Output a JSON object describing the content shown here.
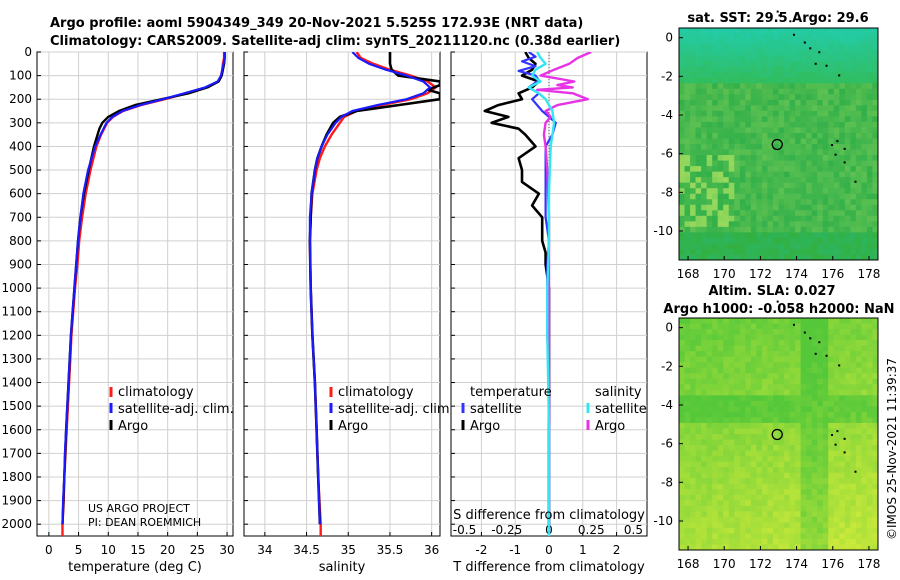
{
  "title_line1": "Argo profile: aoml 5904349_349 20-Nov-2021 5.525S 172.93E (NRT data)",
  "title_line2": "Climatology: CARS2009. Satellite-adj clim: synTS_20211120.nc (0.38d earlier)",
  "credit": "©IMOS 25-Nov-2021 11:39:37",
  "project_line1": "US ARGO PROJECT",
  "project_line2": "PI: DEAN ROEMMICH",
  "colors": {
    "climatology": "#ff1a1a",
    "satellite": "#1a1aff",
    "argo": "#000000",
    "t_sat": "#3333ff",
    "s_sat": "#33e6f2",
    "s_argo": "#e633e6"
  },
  "chart_data": [
    {
      "type": "line",
      "id": "temperature",
      "xlabel": "temperature (deg C)",
      "xlim": [
        -2,
        31
      ],
      "ylim": [
        2050,
        0
      ],
      "xticks": [
        0,
        5,
        10,
        15,
        20,
        25,
        30
      ],
      "yticks": [
        0,
        100,
        200,
        300,
        400,
        500,
        600,
        700,
        800,
        900,
        1000,
        1100,
        1200,
        1300,
        1400,
        1500,
        1600,
        1700,
        1800,
        1900,
        2000
      ],
      "legend": [
        "climatology",
        "satellite-adj. clim.",
        "Argo"
      ],
      "series": [
        {
          "name": "climatology",
          "depth": [
            0,
            25,
            50,
            75,
            100,
            125,
            150,
            175,
            200,
            225,
            250,
            275,
            300,
            350,
            400,
            500,
            600,
            700,
            800,
            900,
            1000,
            1100,
            1200,
            1300,
            1400,
            1500,
            1600,
            1700,
            1800,
            1900,
            2000,
            2050
          ],
          "values": [
            29.5,
            29.5,
            29.3,
            29.2,
            29.0,
            28.5,
            26.5,
            23,
            19.5,
            15.5,
            12.5,
            10.8,
            9.8,
            8.8,
            8.0,
            7.0,
            6.2,
            5.6,
            5.1,
            4.8,
            4.4,
            4.1,
            3.8,
            3.6,
            3.4,
            3.2,
            3.0,
            2.8,
            2.6,
            2.5,
            2.3,
            2.3
          ]
        },
        {
          "name": "satellite-adj. clim.",
          "depth": [
            0,
            25,
            50,
            75,
            100,
            125,
            150,
            175,
            200,
            225,
            250,
            275,
            300,
            350,
            400,
            500,
            600,
            700,
            800,
            900,
            1000,
            1100,
            1200,
            1300,
            1400,
            1500,
            1600,
            1700,
            1800,
            1900,
            2000
          ],
          "values": [
            29.6,
            29.6,
            29.4,
            29.2,
            29.0,
            28.4,
            26.3,
            22.8,
            19.2,
            15.4,
            12.4,
            10.7,
            9.7,
            8.7,
            7.8,
            6.6,
            5.8,
            5.3,
            4.9,
            4.6,
            4.3,
            4.0,
            3.7,
            3.5,
            3.3,
            3.1,
            2.9,
            2.7,
            2.6,
            2.4,
            2.3
          ]
        },
        {
          "name": "Argo",
          "depth": [
            0,
            25,
            50,
            75,
            100,
            125,
            150,
            175,
            200,
            225,
            250,
            275,
            300,
            325,
            350,
            400,
            500,
            600,
            700,
            800,
            900,
            1000,
            1200,
            1400,
            1600,
            1800,
            2000
          ],
          "values": [
            29.6,
            29.6,
            29.5,
            29.3,
            29.1,
            28.6,
            26.7,
            23.5,
            19.0,
            14.5,
            11.8,
            10.0,
            9.0,
            8.5,
            8.2,
            7.6,
            6.7,
            5.9,
            5.3,
            4.9,
            4.6,
            4.3,
            3.7,
            3.3,
            2.9,
            2.6,
            2.3
          ]
        }
      ]
    },
    {
      "type": "line",
      "id": "salinity",
      "xlabel": "salinity",
      "xlim": [
        33.75,
        36.1
      ],
      "ylim": [
        2050,
        0
      ],
      "xticks": [
        34,
        34.5,
        35,
        35.5,
        36
      ],
      "xticklabels": [
        "34",
        "34.5",
        "35",
        "35.5",
        "36"
      ],
      "legend": [
        "climatology",
        "satellite-adj. clim.",
        "Argo"
      ],
      "series": [
        {
          "name": "climatology",
          "depth": [
            0,
            25,
            50,
            75,
            100,
            125,
            150,
            175,
            200,
            225,
            250,
            275,
            300,
            350,
            400,
            450,
            500,
            600,
            700,
            800,
            1000,
            1200,
            1400,
            1600,
            1800,
            2000,
            2050
          ],
          "values": [
            35.1,
            35.15,
            35.3,
            35.5,
            35.75,
            35.95,
            36.05,
            35.95,
            35.75,
            35.4,
            35.1,
            34.95,
            34.9,
            34.8,
            34.72,
            34.66,
            34.62,
            34.57,
            34.55,
            34.54,
            34.55,
            34.57,
            34.6,
            34.62,
            34.64,
            34.67,
            34.67
          ]
        },
        {
          "name": "satellite-adj. clim.",
          "depth": [
            0,
            25,
            50,
            75,
            100,
            125,
            150,
            175,
            200,
            225,
            250,
            275,
            300,
            350,
            400,
            450,
            500,
            600,
            700,
            800,
            1000,
            1200,
            1400,
            1600,
            1800,
            2000
          ],
          "values": [
            35.05,
            35.12,
            35.25,
            35.45,
            35.7,
            35.9,
            35.98,
            35.9,
            35.7,
            35.35,
            35.05,
            34.92,
            34.85,
            34.75,
            34.68,
            34.63,
            34.6,
            34.56,
            34.54,
            34.54,
            34.55,
            34.57,
            34.6,
            34.62,
            34.64,
            34.66
          ]
        },
        {
          "name": "Argo",
          "depth": [
            0,
            25,
            50,
            75,
            100,
            125,
            140,
            160,
            175,
            200,
            225,
            250,
            275,
            300,
            350,
            400,
            450,
            500,
            600,
            700,
            800,
            1000,
            1200,
            1400,
            1600,
            1800,
            2000
          ],
          "values": [
            35.5,
            35.5,
            35.5,
            35.52,
            35.6,
            36.1,
            36.1,
            35.95,
            36.1,
            36.1,
            35.6,
            35.1,
            34.9,
            34.82,
            34.74,
            34.68,
            34.63,
            34.6,
            34.56,
            34.55,
            34.54,
            34.55,
            34.57,
            34.6,
            34.62,
            34.64,
            34.66
          ]
        }
      ]
    },
    {
      "type": "line",
      "id": "differences",
      "xlabel": "T difference from climatology",
      "xlabel_top": "S difference from climatology",
      "xlim": [
        -2.9,
        2.9
      ],
      "ylim": [
        2050,
        0
      ],
      "xticks": [
        -2,
        -1,
        0,
        1,
        2
      ],
      "s_ticks": [
        -0.5,
        -0.25,
        0,
        0.25,
        0.5
      ],
      "s_ticklabels": [
        "-0.5",
        "-0.25",
        "0",
        "0.25",
        "0.5"
      ],
      "legend_temperature_title": "temperature",
      "legend_salinity_title": "salinity",
      "legend": [
        "satellite",
        "Argo",
        "satellite",
        "Argo"
      ],
      "series": [
        {
          "name": "T satellite",
          "depth": [
            0,
            20,
            40,
            60,
            80,
            100,
            120,
            150,
            175,
            200,
            250,
            300,
            350,
            400,
            500,
            600,
            700,
            800,
            900,
            1000,
            1200,
            1400,
            1600,
            1800,
            2000,
            2050
          ],
          "values": [
            -0.6,
            -0.4,
            -0.8,
            -0.4,
            -0.9,
            -0.4,
            -0.3,
            -0.6,
            -0.3,
            -0.5,
            -0.2,
            0.2,
            0.1,
            -0.1,
            -0.1,
            -0.1,
            -0.1,
            0.0,
            -0.05,
            -0.05,
            -0.05,
            0,
            0,
            0,
            0,
            0
          ]
        },
        {
          "name": "T Argo",
          "depth": [
            0,
            25,
            50,
            75,
            100,
            125,
            150,
            175,
            200,
            225,
            250,
            275,
            300,
            325,
            350,
            400,
            450,
            500,
            550,
            600,
            650,
            700,
            750,
            800,
            850,
            900,
            950,
            1000,
            1100,
            1200,
            1400,
            1600,
            1800,
            2000
          ],
          "values": [
            -0.7,
            -0.6,
            -0.4,
            -0.5,
            -0.8,
            -0.3,
            -0.5,
            -0.9,
            -0.8,
            -1.5,
            -1.9,
            -1.2,
            -1.7,
            -0.9,
            -0.7,
            -0.4,
            -0.9,
            -0.8,
            -0.8,
            -0.3,
            -0.5,
            -0.2,
            -0.2,
            -0.2,
            -0.1,
            -0.1,
            -0.05,
            0,
            0,
            0,
            0,
            0,
            0,
            0
          ]
        },
        {
          "name": "S satellite",
          "depth": [
            0,
            25,
            50,
            75,
            100,
            125,
            150,
            175,
            200,
            250,
            300,
            350,
            400,
            500,
            600,
            800,
            1000,
            1200,
            1400,
            1600,
            1800,
            2000,
            2050
          ],
          "values": [
            -0.07,
            -0.05,
            -0.02,
            -0.08,
            -0.1,
            -0.05,
            -0.12,
            -0.06,
            -0.02,
            0.02,
            0.03,
            0.02,
            0.01,
            0.005,
            0,
            0,
            -0.01,
            -0.01,
            -0.005,
            0,
            0,
            0,
            0
          ]
        },
        {
          "name": "S Argo",
          "depth": [
            0,
            25,
            50,
            75,
            100,
            125,
            140,
            150,
            160,
            175,
            200,
            225,
            250,
            275,
            300,
            350,
            400,
            500,
            600,
            700,
            800,
            1000,
            1200,
            1400,
            1600,
            1800,
            2000
          ],
          "values": [
            0.25,
            0.17,
            0.12,
            0.03,
            -0.05,
            0.15,
            0.05,
            0.14,
            -0.07,
            0.14,
            0.23,
            0.05,
            -0.02,
            0.01,
            -0.02,
            -0.03,
            -0.02,
            -0.01,
            -0.005,
            0,
            0,
            0,
            0,
            0,
            0,
            0,
            0
          ]
        }
      ]
    },
    {
      "type": "heatmap",
      "id": "sst-map",
      "title": "sat. SST: 29.5 Argo: 29.6",
      "xlim": [
        167.5,
        178.5
      ],
      "ylim": [
        -11.5,
        0.5
      ],
      "xticks": [
        168,
        170,
        172,
        174,
        176,
        178
      ],
      "yticks": [
        0,
        -2,
        -4,
        -6,
        -8,
        -10
      ],
      "float_position": [
        172.93,
        -5.525
      ]
    },
    {
      "type": "heatmap",
      "id": "sla-map",
      "title_line1": "Altim. SLA: 0.027",
      "title_line2": "Argo h1000: -0.058 h2000: NaN",
      "xlim": [
        167.5,
        178.5
      ],
      "ylim": [
        -11.5,
        0.5
      ],
      "xticks": [
        168,
        170,
        172,
        174,
        176,
        178
      ],
      "yticks": [
        0,
        -2,
        -4,
        -6,
        -8,
        -10
      ],
      "float_position": [
        172.93,
        -5.525
      ]
    }
  ]
}
